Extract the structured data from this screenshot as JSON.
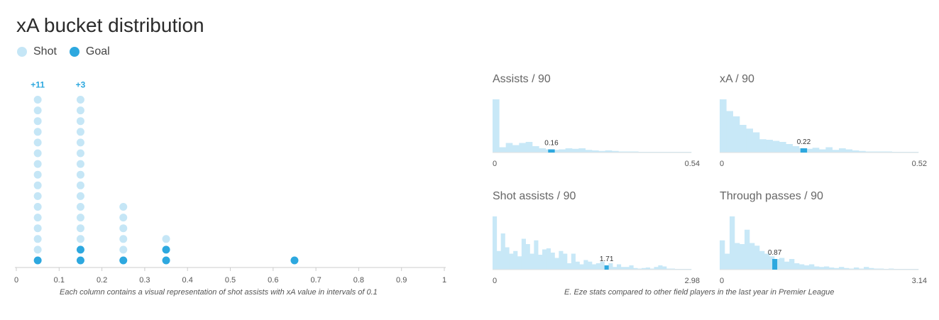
{
  "title": "xA bucket distribution",
  "legend": [
    {
      "label": "Shot",
      "color": "#c5e6f6"
    },
    {
      "label": "Goal",
      "color": "#2da8df"
    }
  ],
  "colors": {
    "shot": "#c5e6f6",
    "goal": "#2da8df",
    "hist_bar": "#c8e8f7",
    "hist_marker": "#2da8df",
    "axis": "#cccccc"
  },
  "caption_left": "Each column contains a visual representation of shot assists with xA value in intervals of 0.1",
  "caption_right": "E. Eze stats compared to other field players in the last year in Premier League",
  "chart_data": [
    {
      "type": "scatter",
      "title": "xA bucket distribution",
      "x_ticks": [
        "0",
        "0.1",
        "0.2",
        "0.3",
        "0.4",
        "0.5",
        "0.6",
        "0.7",
        "0.8",
        "0.9",
        "1"
      ],
      "xlim": [
        0,
        1
      ],
      "columns": [
        {
          "x": 0.05,
          "shots_shown": 16,
          "goals": 1,
          "overflow": "+11"
        },
        {
          "x": 0.15,
          "shots_shown": 16,
          "goals": 2,
          "overflow": "+3"
        },
        {
          "x": 0.25,
          "shots_shown": 6,
          "goals": 1,
          "overflow": ""
        },
        {
          "x": 0.35,
          "shots_shown": 3,
          "goals": 2,
          "overflow": ""
        },
        {
          "x": 0.65,
          "shots_shown": 1,
          "goals": 1,
          "overflow": ""
        }
      ]
    },
    {
      "type": "bar",
      "title": "Assists / 90",
      "xmin_label": "0",
      "xmax_label": "0.54",
      "player_value": 0.16,
      "player_label": "0.16",
      "values": [
        1.0,
        0.1,
        0.18,
        0.14,
        0.18,
        0.2,
        0.12,
        0.08,
        0.06,
        0.05,
        0.06,
        0.08,
        0.07,
        0.08,
        0.05,
        0.04,
        0.03,
        0.04,
        0.03,
        0.02,
        0.02,
        0.02,
        0.01,
        0.01,
        0.01,
        0.01,
        0.01,
        0.01,
        0.01,
        0.01
      ]
    },
    {
      "type": "bar",
      "title": "xA / 90",
      "xmin_label": "0",
      "xmax_label": "0.52",
      "player_value": 0.22,
      "player_label": "0.22",
      "values": [
        1.0,
        0.78,
        0.68,
        0.52,
        0.45,
        0.38,
        0.25,
        0.24,
        0.22,
        0.2,
        0.16,
        0.12,
        0.08,
        0.07,
        0.09,
        0.06,
        0.1,
        0.05,
        0.08,
        0.06,
        0.04,
        0.03,
        0.02,
        0.02,
        0.02,
        0.02,
        0.01,
        0.01,
        0.01,
        0.01
      ]
    },
    {
      "type": "bar",
      "title": "Shot assists / 90",
      "xmin_label": "0",
      "xmax_label": "2.98",
      "player_value": 1.71,
      "player_label": "1.71",
      "values": [
        1.0,
        0.35,
        0.68,
        0.42,
        0.3,
        0.35,
        0.25,
        0.58,
        0.48,
        0.3,
        0.55,
        0.28,
        0.38,
        0.4,
        0.32,
        0.22,
        0.35,
        0.3,
        0.12,
        0.3,
        0.15,
        0.1,
        0.18,
        0.15,
        0.1,
        0.12,
        0.15,
        0.08,
        0.12,
        0.05,
        0.1,
        0.05,
        0.05,
        0.08,
        0.03,
        0.02,
        0.03,
        0.04,
        0.02,
        0.05,
        0.08,
        0.06,
        0.02,
        0.02,
        0.01,
        0.01,
        0.01,
        0.01
      ]
    },
    {
      "type": "bar",
      "title": "Through passes / 90",
      "xmin_label": "0",
      "xmax_label": "3.14",
      "player_value": 0.87,
      "player_label": "0.87",
      "values": [
        0.55,
        0.3,
        1.0,
        0.5,
        0.48,
        0.75,
        0.5,
        0.45,
        0.35,
        0.3,
        0.25,
        0.2,
        0.22,
        0.15,
        0.2,
        0.12,
        0.1,
        0.08,
        0.1,
        0.06,
        0.05,
        0.06,
        0.04,
        0.03,
        0.05,
        0.03,
        0.02,
        0.04,
        0.02,
        0.05,
        0.03,
        0.02,
        0.02,
        0.01,
        0.02,
        0.01,
        0.01,
        0.01,
        0.01,
        0.01
      ]
    }
  ]
}
